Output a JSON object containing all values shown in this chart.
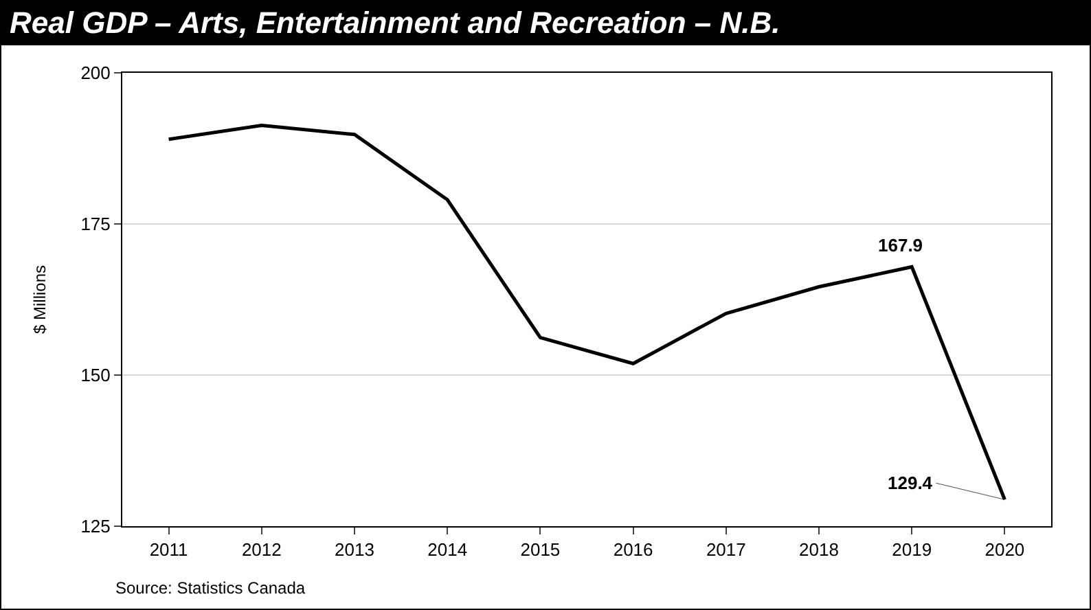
{
  "chart_data": {
    "type": "line",
    "title": "Real GDP – Arts, Entertainment and Recreation – N.B.",
    "ylabel": "$ Millions",
    "categories": [
      "2011",
      "2012",
      "2013",
      "2014",
      "2015",
      "2016",
      "2017",
      "2018",
      "2019",
      "2020"
    ],
    "series": [
      {
        "color": "#000000",
        "values": [
          189.0,
          191.3,
          189.8,
          179.0,
          156.2,
          151.9,
          160.2,
          164.6,
          167.9,
          129.4
        ]
      }
    ],
    "ylim": [
      125,
      200
    ],
    "yticks": [
      125,
      150,
      175,
      200
    ],
    "grid": "y",
    "marker": "none",
    "line_style": "solid",
    "annotations": [
      {
        "text": "167.9",
        "x": "2019",
        "y": 167.9
      },
      {
        "text": "129.4",
        "x": "2020",
        "y": 129.4
      },
      "Source: Statistics Canada"
    ]
  }
}
